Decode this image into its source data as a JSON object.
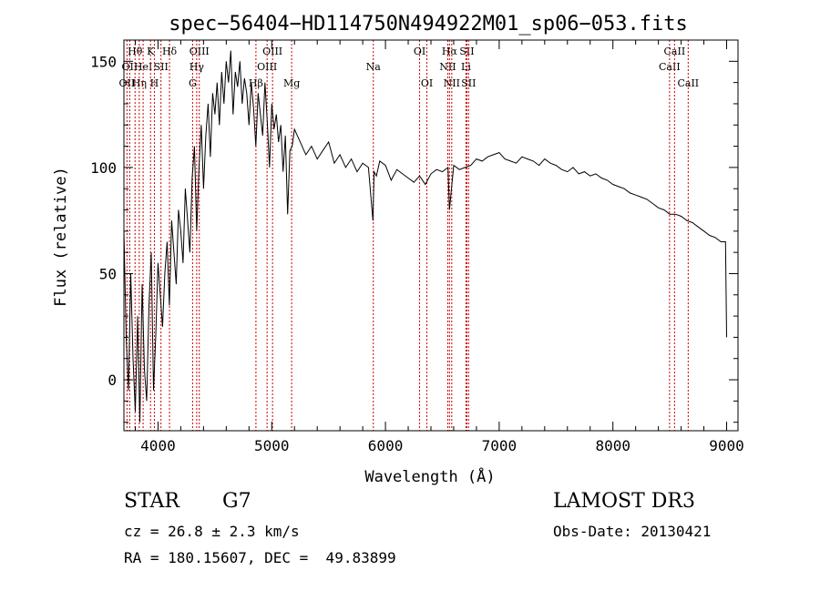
{
  "chart_data": {
    "type": "line",
    "title": "spec−56404−HD114750N494922M01_sp06−053.fits",
    "xlabel": "Wavelength (Å)",
    "ylabel": "Flux (relative)",
    "xlim": [
      3700,
      9100
    ],
    "ylim": [
      -24,
      160
    ],
    "xticks": [
      4000,
      5000,
      6000,
      7000,
      8000,
      9000
    ],
    "yticks": [
      0,
      50,
      100,
      150
    ],
    "grid": false,
    "legend": "none",
    "line_color": "#000000",
    "marker_color": "#cc0000",
    "series": [
      {
        "x": [
          3700,
          3720,
          3740,
          3760,
          3780,
          3800,
          3820,
          3840,
          3860,
          3880,
          3900,
          3920,
          3940,
          3960,
          3980,
          4000,
          4020,
          4040,
          4060,
          4080,
          4100,
          4120,
          4140,
          4160,
          4180,
          4200,
          4220,
          4240,
          4260,
          4280,
          4300,
          4320,
          4340,
          4360,
          4380,
          4400,
          4420,
          4440,
          4460,
          4480,
          4500,
          4520,
          4540,
          4560,
          4580,
          4600,
          4620,
          4640,
          4660,
          4680,
          4700,
          4720,
          4740,
          4760,
          4780,
          4800,
          4820,
          4840,
          4860,
          4880,
          4900,
          4920,
          4940,
          4960,
          4980,
          5000,
          5020,
          5040,
          5060,
          5080,
          5100,
          5120,
          5140,
          5160,
          5180,
          5200,
          5250,
          5300,
          5350,
          5400,
          5450,
          5500,
          5550,
          5600,
          5650,
          5700,
          5750,
          5800,
          5850,
          5890,
          5900,
          5920,
          5950,
          6000,
          6050,
          6100,
          6150,
          6200,
          6250,
          6300,
          6350,
          6400,
          6450,
          6500,
          6550,
          6563,
          6600,
          6650,
          6700,
          6750,
          6800,
          6850,
          6900,
          6950,
          7000,
          7050,
          7100,
          7150,
          7200,
          7250,
          7300,
          7350,
          7400,
          7450,
          7500,
          7550,
          7600,
          7650,
          7700,
          7750,
          7800,
          7850,
          7900,
          7950,
          8000,
          8050,
          8100,
          8150,
          8200,
          8250,
          8300,
          8350,
          8400,
          8450,
          8500,
          8550,
          8600,
          8650,
          8700,
          8750,
          8800,
          8850,
          8900,
          8950,
          8980,
          8990,
          9000
        ],
        "y": [
          70,
          20,
          -5,
          50,
          10,
          -15,
          30,
          -20,
          45,
          5,
          -10,
          35,
          60,
          -5,
          20,
          55,
          40,
          25,
          50,
          65,
          35,
          75,
          60,
          45,
          80,
          70,
          55,
          90,
          75,
          60,
          95,
          110,
          70,
          100,
          120,
          90,
          115,
          130,
          105,
          135,
          125,
          140,
          120,
          145,
          130,
          150,
          140,
          155,
          125,
          145,
          138,
          150,
          130,
          142,
          135,
          120,
          140,
          128,
          110,
          135,
          125,
          115,
          140,
          122,
          100,
          130,
          118,
          125,
          112,
          120,
          98,
          115,
          78,
          108,
          110,
          118,
          112,
          106,
          110,
          104,
          108,
          112,
          102,
          106,
          100,
          104,
          98,
          102,
          100,
          75,
          98,
          96,
          103,
          101,
          94,
          99,
          97,
          95,
          93,
          96,
          92,
          97,
          99,
          98,
          100,
          80,
          101,
          99,
          100,
          101,
          104,
          103,
          105,
          106,
          107,
          104,
          103,
          102,
          105,
          104,
          103,
          101,
          104,
          102,
          101,
          99,
          98,
          100,
          97,
          98,
          96,
          97,
          95,
          94,
          92,
          91,
          90,
          88,
          87,
          86,
          85,
          83,
          81,
          80,
          78,
          78,
          77,
          75,
          74,
          72,
          70,
          68,
          67,
          65,
          65,
          65,
          20
        ]
      }
    ],
    "line_markers": [
      {
        "wavelength": 3727,
        "label": "OII",
        "row": 2
      },
      {
        "wavelength": 3751,
        "label": "OII",
        "row": 1
      },
      {
        "wavelength": 3798,
        "label": "Hθ",
        "row": 0
      },
      {
        "wavelength": 3835,
        "label": "Hη",
        "row": 2
      },
      {
        "wavelength": 3869,
        "label": "HeI",
        "row": 1
      },
      {
        "wavelength": 3934,
        "label": "K",
        "row": 0
      },
      {
        "wavelength": 3968,
        "label": "H",
        "row": 2
      },
      {
        "wavelength": 4026,
        "label": "SII",
        "row": 1
      },
      {
        "wavelength": 4101,
        "label": "Hδ",
        "row": 0
      },
      {
        "wavelength": 4304,
        "label": "G",
        "row": 2
      },
      {
        "wavelength": 4340,
        "label": "Hγ",
        "row": 1
      },
      {
        "wavelength": 4363,
        "label": "OIII",
        "row": 0
      },
      {
        "wavelength": 4861,
        "label": "Hβ",
        "row": 2
      },
      {
        "wavelength": 4959,
        "label": "OIII",
        "row": 1
      },
      {
        "wavelength": 5007,
        "label": "OIII",
        "row": 0
      },
      {
        "wavelength": 5175,
        "label": "Mg",
        "row": 2
      },
      {
        "wavelength": 5893,
        "label": "Na",
        "row": 1
      },
      {
        "wavelength": 6300,
        "label": "OI",
        "row": 0
      },
      {
        "wavelength": 6364,
        "label": "OI",
        "row": 2
      },
      {
        "wavelength": 6548,
        "label": "NII",
        "row": 1
      },
      {
        "wavelength": 6563,
        "label": "Hα",
        "row": 0
      },
      {
        "wavelength": 6583,
        "label": "NII",
        "row": 2
      },
      {
        "wavelength": 6708,
        "label": "Li",
        "row": 1
      },
      {
        "wavelength": 6716,
        "label": "SII",
        "row": 0
      },
      {
        "wavelength": 6731,
        "label": "SII",
        "row": 2
      },
      {
        "wavelength": 8498,
        "label": "CaII",
        "row": 1
      },
      {
        "wavelength": 8542,
        "label": "CaII",
        "row": 0
      },
      {
        "wavelength": 8662,
        "label": "CaII",
        "row": 2
      }
    ]
  },
  "info": {
    "class_label": "STAR",
    "subclass": "G7",
    "survey": "LAMOST DR3",
    "redshift": "cz = 26.8 ± 2.3 km/s",
    "obs_date": "Obs-Date: 20130421",
    "coords": "RA = 180.15607, DEC =  49.83899"
  }
}
